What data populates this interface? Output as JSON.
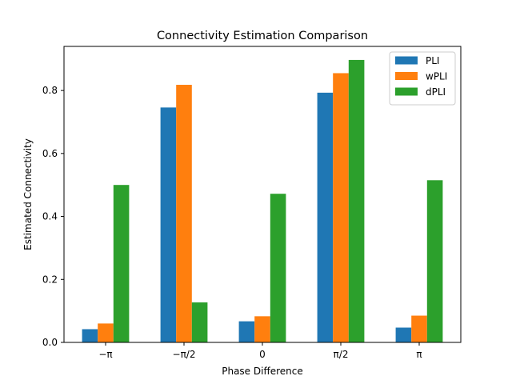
{
  "chart_data": {
    "type": "bar",
    "title": "Connectivity Estimation Comparison",
    "xlabel": "Phase Difference",
    "ylabel": "Estimated Connectivity",
    "categories": [
      "−π",
      "−π/2",
      "0",
      "π/2",
      "π"
    ],
    "series": [
      {
        "name": "PLI",
        "color": "#1f77b4",
        "values": [
          0.042,
          0.746,
          0.067,
          0.793,
          0.047
        ]
      },
      {
        "name": "wPLI",
        "color": "#ff7f0e",
        "values": [
          0.06,
          0.818,
          0.083,
          0.855,
          0.085
        ]
      },
      {
        "name": "dPLI",
        "color": "#2ca02c",
        "values": [
          0.5,
          0.127,
          0.472,
          0.897,
          0.515
        ]
      }
    ],
    "ylim": [
      0,
      0.94
    ],
    "yticks": [
      0.0,
      0.2,
      0.4,
      0.6,
      0.8
    ],
    "ytick_labels": [
      "0.0",
      "0.2",
      "0.4",
      "0.6",
      "0.8"
    ],
    "grid": false,
    "legend_position": "top-right"
  }
}
